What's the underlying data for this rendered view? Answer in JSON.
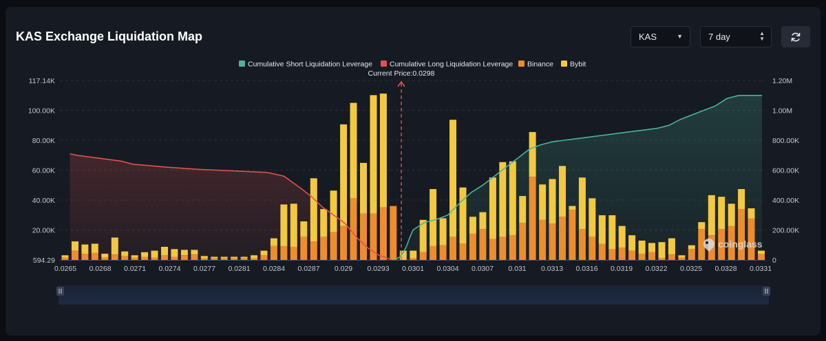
{
  "header": {
    "title": "KAS Exchange Liquidation Map",
    "symbol_select": "KAS",
    "range_select": "7 day"
  },
  "icons": {
    "refresh": "refresh-icon",
    "caret": "chevron-down-icon",
    "stepper": "up-down-icon",
    "brand": "coinglass-logo"
  },
  "watermark": "coinglass",
  "colors": {
    "short_line": "#4ab59b",
    "long_line": "#e0524f",
    "binance": "#ee8d2b",
    "bybit": "#f3c93f",
    "price_marker": "#e0524f"
  },
  "chart_data": {
    "type": "bar",
    "title": "",
    "current_price_label": "Current Price:0.0298",
    "current_price": 0.0298,
    "legend": [
      "Cumulative Short Liquidation Leverage",
      "Cumulative Long Liquidation Leverage",
      "Binance",
      "Bybit"
    ],
    "legend_placement": "top-center",
    "grid": true,
    "y_left_ticks": [
      "594.29",
      "20.00K",
      "40.00K",
      "60.00K",
      "80.00K",
      "100.00K",
      "117.14K"
    ],
    "y_left_range": [
      594.29,
      117140
    ],
    "y_right_ticks": [
      "0",
      "200.00K",
      "400.00K",
      "600.00K",
      "800.00K",
      "1.00M",
      "1.20M"
    ],
    "y_right_range": [
      0,
      1200000
    ],
    "x_tick_labels": [
      "0.0265",
      "0.0268",
      "0.0271",
      "0.0274",
      "0.0277",
      "0.0281",
      "0.0284",
      "0.0287",
      "0.029",
      "0.0293",
      "0.0301",
      "0.0304",
      "0.0307",
      "0.031",
      "0.0313",
      "0.0316",
      "0.0319",
      "0.0322",
      "0.0325",
      "0.0328",
      "0.0331"
    ],
    "series": [
      {
        "name": "Binance",
        "values": [
          1500,
          6000,
          4000,
          4500,
          1500,
          3500,
          2500,
          1500,
          2000,
          1500,
          3000,
          2000,
          3000,
          3500,
          1000,
          1000,
          1000,
          1000,
          1000,
          1000,
          3000,
          9000,
          9000,
          8500,
          15000,
          12000,
          15000,
          18000,
          22000,
          40000,
          30000,
          30000,
          34000,
          35000,
          0,
          1000,
          5000,
          9000,
          9500,
          15000,
          10500,
          17000,
          20000,
          13500,
          15000,
          16000,
          24000,
          54000,
          26000,
          23500,
          28000,
          32500,
          20000,
          15000,
          10500,
          7000,
          8000,
          6000,
          4000,
          5000,
          1000,
          3500,
          1500,
          7000,
          20000,
          16000,
          20000,
          22000,
          33000,
          27000,
          4000
        ]
      },
      {
        "name": "Bybit",
        "values": [
          1500,
          6000,
          6000,
          6000,
          2500,
          11000,
          3000,
          1500,
          3000,
          4500,
          5500,
          5000,
          3500,
          3000,
          1500,
          1000,
          1000,
          1000,
          1000,
          2000,
          3000,
          5000,
          27000,
          28000,
          10000,
          41000,
          18000,
          27000,
          66000,
          62000,
          33000,
          77000,
          74000,
          0,
          6000,
          5000,
          21000,
          37000,
          17500,
          76000,
          36500,
          11000,
          11000,
          40000,
          48500,
          48000,
          17500,
          29000,
          23000,
          29000,
          33000,
          2500,
          33500,
          25000,
          18500,
          22000,
          14000,
          10000,
          8500,
          6000,
          10500,
          10500,
          1500,
          2500,
          4500,
          26000,
          21000,
          14500,
          13000,
          6500,
          2000
        ]
      },
      {
        "name": "Cumulative Long Liquidation Leverage",
        "x": [
          0.02654,
          0.0266,
          0.0268,
          0.027,
          0.0271,
          0.0274,
          0.0277,
          0.028,
          0.0283,
          0.02845,
          0.0286,
          0.0287,
          0.0288,
          0.02895,
          0.029,
          0.0291,
          0.0292,
          0.0293,
          0.0294,
          0.02945
        ],
        "values": [
          710000,
          700000,
          680000,
          660000,
          640000,
          620000,
          605000,
          595000,
          585000,
          560000,
          480000,
          420000,
          350000,
          270000,
          240000,
          150000,
          80000,
          30000,
          5000,
          0
        ]
      },
      {
        "name": "Cumulative Short Liquidation Leverage",
        "x": [
          0.02952,
          0.0297,
          0.0298,
          0.0299,
          0.03,
          0.0301,
          0.0302,
          0.0303,
          0.0304,
          0.0305,
          0.0306,
          0.0307,
          0.0308,
          0.0309,
          0.031,
          0.0311,
          0.0312,
          0.0313,
          0.0314,
          0.0315,
          0.0316,
          0.0317,
          0.0318,
          0.0319,
          0.032,
          0.0321,
          0.0322,
          0.0323,
          0.0324,
          0.0325,
          0.0326,
          0.0327,
          0.0328,
          0.0329,
          0.033,
          0.03305,
          0.0331
        ],
        "values": [
          0,
          20000,
          50000,
          90000,
          150000,
          200000,
          250000,
          270000,
          300000,
          380000,
          450000,
          500000,
          560000,
          620000,
          680000,
          740000,
          770000,
          790000,
          800000,
          810000,
          820000,
          830000,
          840000,
          850000,
          860000,
          870000,
          880000,
          900000,
          940000,
          970000,
          1000000,
          1030000,
          1080000,
          1100000,
          1100000,
          1100000,
          1100000
        ]
      }
    ]
  }
}
